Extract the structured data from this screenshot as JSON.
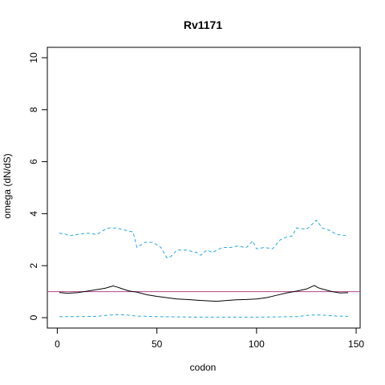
{
  "chart_data": {
    "type": "line",
    "title": "Rv1171",
    "xlabel": "codon",
    "ylabel": "omega (dN/dS)",
    "xlim": [
      -5,
      152
    ],
    "ylim": [
      -0.4,
      10.4
    ],
    "x_ticks": [
      0,
      50,
      100,
      150
    ],
    "y_ticks": [
      0,
      2,
      4,
      6,
      8,
      10
    ],
    "grid": false,
    "legend": "none",
    "reference_line": {
      "y": 1,
      "color": "#b0458f"
    },
    "series": [
      {
        "style": "solid",
        "color": "#000000",
        "x": [
          1,
          5,
          10,
          15,
          20,
          24,
          28,
          30,
          33,
          36,
          40,
          45,
          50,
          55,
          60,
          65,
          70,
          75,
          80,
          85,
          90,
          95,
          100,
          105,
          110,
          115,
          120,
          125,
          129,
          131,
          134,
          138,
          142,
          146
        ],
        "y": [
          0.97,
          0.94,
          0.96,
          1.02,
          1.08,
          1.13,
          1.22,
          1.18,
          1.1,
          1.03,
          0.98,
          0.88,
          0.82,
          0.77,
          0.72,
          0.7,
          0.67,
          0.65,
          0.63,
          0.66,
          0.69,
          0.7,
          0.72,
          0.77,
          0.86,
          0.95,
          1.02,
          1.1,
          1.24,
          1.15,
          1.08,
          1.0,
          0.95,
          0.96
        ]
      },
      {
        "style": "dashed",
        "color": "#29a7de",
        "x": [
          1,
          4,
          6,
          10,
          15,
          20,
          24,
          26,
          30,
          32,
          35,
          38,
          40,
          44,
          48,
          52,
          55,
          57,
          60,
          65,
          70,
          72,
          75,
          78,
          80,
          83,
          87,
          90,
          95,
          98,
          100,
          104,
          108,
          112,
          115,
          118,
          120,
          125,
          128,
          130,
          133,
          137,
          140,
          146
        ],
        "y": [
          3.25,
          3.22,
          3.15,
          3.2,
          3.25,
          3.2,
          3.4,
          3.45,
          3.45,
          3.4,
          3.35,
          3.3,
          2.7,
          2.9,
          2.9,
          2.7,
          2.3,
          2.35,
          2.6,
          2.6,
          2.5,
          2.4,
          2.6,
          2.5,
          2.6,
          2.7,
          2.7,
          2.75,
          2.7,
          2.95,
          2.65,
          2.7,
          2.65,
          3.0,
          3.1,
          3.15,
          3.45,
          3.4,
          3.6,
          3.75,
          3.45,
          3.35,
          3.2,
          3.15
        ]
      },
      {
        "style": "dashed",
        "color": "#29a7de",
        "x": [
          1,
          10,
          20,
          25,
          30,
          35,
          40,
          50,
          60,
          70,
          80,
          90,
          100,
          110,
          120,
          125,
          130,
          135,
          140,
          146
        ],
        "y": [
          0.04,
          0.04,
          0.05,
          0.09,
          0.12,
          0.1,
          0.06,
          0.04,
          0.03,
          0.02,
          0.02,
          0.02,
          0.02,
          0.03,
          0.04,
          0.08,
          0.11,
          0.09,
          0.06,
          0.05
        ]
      }
    ]
  }
}
